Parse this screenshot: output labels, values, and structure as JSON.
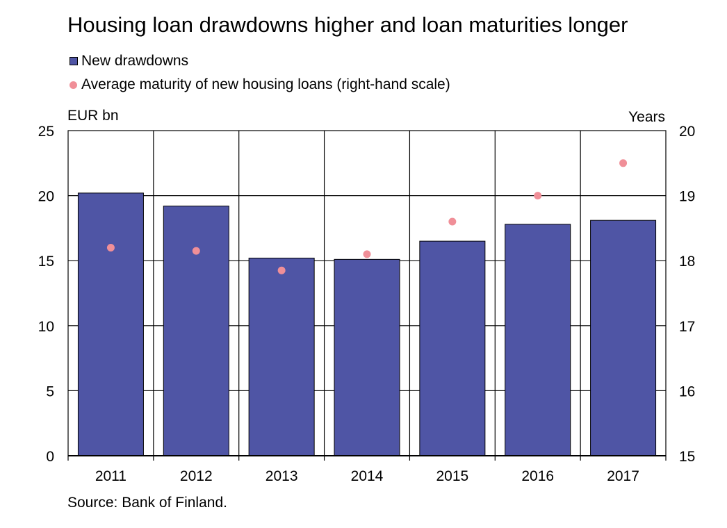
{
  "title": "Housing loan drawdowns higher and loan maturities longer",
  "source": "Source: Bank of Finland.",
  "colors": {
    "bars": "#4f55a5",
    "dots": "#f08f98"
  },
  "chart_data": {
    "type": "bar",
    "categories": [
      "2011",
      "2012",
      "2013",
      "2014",
      "2015",
      "2016",
      "2017"
    ],
    "series": [
      {
        "name": "New drawdowns",
        "type": "bar",
        "axis": "left",
        "values": [
          20.2,
          19.2,
          15.2,
          15.1,
          16.5,
          17.8,
          18.1
        ]
      },
      {
        "name": "Average maturity of new housing loans (right-hand scale)",
        "type": "scatter",
        "axis": "right",
        "values": [
          18.2,
          18.15,
          17.85,
          18.1,
          18.6,
          19.0,
          19.5
        ]
      }
    ],
    "y_left": {
      "label": "EUR bn",
      "range": [
        0,
        25
      ],
      "ticks": [
        0,
        5,
        10,
        15,
        20,
        25
      ]
    },
    "y_right": {
      "label": "Years",
      "range": [
        15,
        20
      ],
      "ticks": [
        15,
        16,
        17,
        18,
        19,
        20
      ]
    },
    "grid": true,
    "legend_position": "top-left"
  }
}
